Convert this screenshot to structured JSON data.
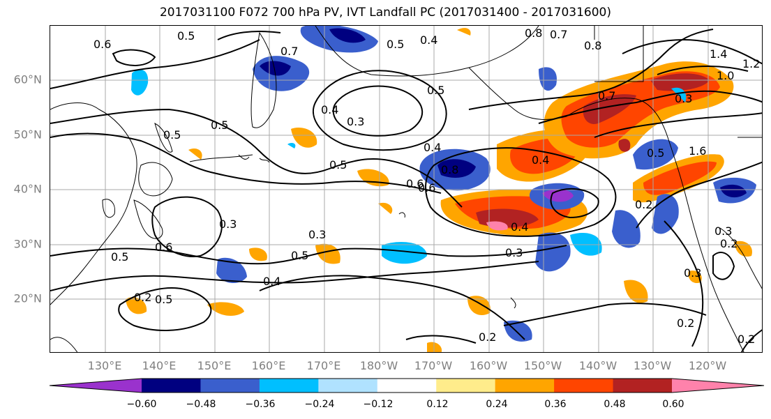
{
  "title": "2017031100 F072 700 hPa PV, IVT Landfall PC (2017031400 - 2017031600)",
  "lat_labels": [
    "60°N",
    "50°N",
    "40°N",
    "30°N",
    "20°N"
  ],
  "lon_labels": [
    "130°E",
    "140°E",
    "150°E",
    "160°E",
    "170°E",
    "180°W",
    "170°W",
    "160°W",
    "150°W",
    "140°W",
    "130°W",
    "120°W"
  ],
  "colorbar": {
    "ticks": [
      "−0.60",
      "−0.48",
      "−0.36",
      "−0.24",
      "−0.12",
      "0.12",
      "0.24",
      "0.36",
      "0.48",
      "0.60"
    ],
    "colors": [
      "#9a32cd",
      "#000080",
      "#3a5fcd",
      "#00bfff",
      "#b0e2ff",
      "#ffffff",
      "#ffec8b",
      "#ffa500",
      "#ff4500",
      "#b22222",
      "#ff82ab"
    ],
    "extend": "both"
  },
  "contour_labels": [
    "0.6",
    "0.5",
    "0.7",
    "0.5",
    "0.4",
    "0.5",
    "0.8",
    "0.7",
    "0.8",
    "1.4",
    "1.2",
    "1.0",
    "0.4",
    "0.5",
    "0.3",
    "0.4",
    "0.3",
    "0.5",
    "0.8",
    "0.7",
    "0.5",
    "0.6",
    "0.5",
    "0.6",
    "0.4",
    "1.6",
    "0.5",
    "0.2",
    "0.3",
    "0.3",
    "0.4",
    "0.3",
    "0.5",
    "0.6",
    "0.5",
    "0.4",
    "0.2",
    "0.2",
    "0.3",
    "0.2",
    "0.2",
    "0.3",
    "0.2"
  ]
}
